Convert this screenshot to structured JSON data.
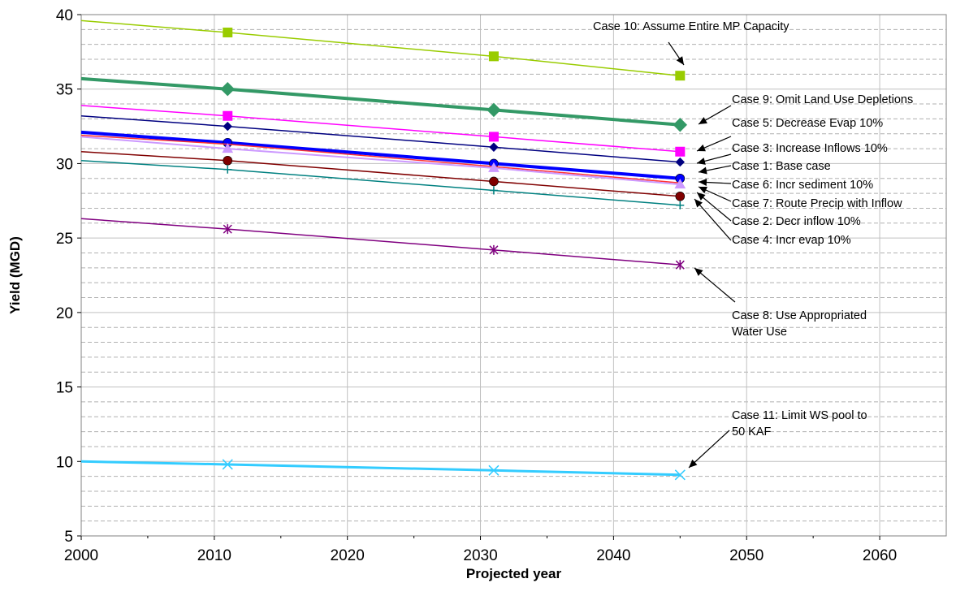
{
  "chart_data": {
    "type": "line",
    "title": "",
    "xlabel": "Projected year",
    "ylabel": "Yield (MGD)",
    "xlim": [
      2000,
      2065
    ],
    "ylim": [
      5,
      40
    ],
    "x_ticks": [
      2000,
      2010,
      2020,
      2030,
      2040,
      2050,
      2060
    ],
    "y_ticks": [
      5,
      10,
      15,
      20,
      25,
      30,
      35,
      40
    ],
    "grid": {
      "major": true,
      "minor_horizontal": true
    },
    "legend": "none",
    "series": [
      {
        "name": "Case 10: Assume Entire MP Capacity",
        "color": "#99cc00",
        "marker": "square",
        "line_width": 1.5,
        "x": [
          2000,
          2011,
          2031,
          2045
        ],
        "values": [
          39.6,
          38.8,
          37.2,
          35.9
        ]
      },
      {
        "name": "Case 9: Omit Land Use Depletions",
        "color": "#339966",
        "marker": "diamond",
        "line_width": 4,
        "x": [
          2000,
          2011,
          2031,
          2045
        ],
        "values": [
          35.7,
          35.0,
          33.6,
          32.6
        ]
      },
      {
        "name": "Case 5: Decrease Evap 10%",
        "color": "#ff00ff",
        "marker": "square",
        "line_width": 1.5,
        "x": [
          2000,
          2011,
          2031,
          2045
        ],
        "values": [
          33.9,
          33.2,
          31.8,
          30.8
        ]
      },
      {
        "name": "Case 3: Increase Inflows 10%",
        "color": "#000080",
        "marker": "diamond",
        "line_width": 1.5,
        "x": [
          2000,
          2011,
          2031,
          2045
        ],
        "values": [
          33.2,
          32.5,
          31.1,
          30.1
        ]
      },
      {
        "name": "Case 1: Base case",
        "color": "#0000ff",
        "marker": "circle",
        "line_width": 4,
        "x": [
          2000,
          2011,
          2031,
          2045
        ],
        "values": [
          32.1,
          31.4,
          30.0,
          29.0
        ]
      },
      {
        "name": "Case 6: Incr sediment 10%",
        "color": "#ff3333",
        "marker": "none",
        "line_width": 1.5,
        "x": [
          2000,
          2011,
          2031,
          2045
        ],
        "values": [
          31.9,
          31.3,
          29.8,
          28.7
        ]
      },
      {
        "name": "Case 7: Route Precip with Inflow",
        "color": "#cc99ff",
        "marker": "triangle",
        "line_width": 2,
        "x": [
          2000,
          2011,
          2031,
          2045
        ],
        "values": [
          31.8,
          31.0,
          29.7,
          28.6
        ]
      },
      {
        "name": "Case 2: Decr inflow 10%",
        "color": "#800000",
        "marker": "circle",
        "line_width": 1.5,
        "x": [
          2000,
          2011,
          2031,
          2045
        ],
        "values": [
          30.8,
          30.2,
          28.8,
          27.8
        ]
      },
      {
        "name": "Case 4: Incr evap 10%",
        "color": "#008080",
        "marker": "plus",
        "line_width": 1.5,
        "x": [
          2000,
          2011,
          2031,
          2045
        ],
        "values": [
          30.2,
          29.6,
          28.2,
          27.2
        ]
      },
      {
        "name": "Case 8: Use Appropriated Water Use",
        "color": "#800080",
        "marker": "asterisk",
        "line_width": 1.5,
        "x": [
          2000,
          2011,
          2031,
          2045
        ],
        "values": [
          26.3,
          25.6,
          24.2,
          23.2
        ]
      },
      {
        "name": "Case 11: Limit WS pool to 50 KAF",
        "color": "#33ccff",
        "marker": "x",
        "line_width": 3,
        "x": [
          2000,
          2011,
          2031,
          2045
        ],
        "values": [
          10.0,
          9.8,
          9.4,
          9.1
        ]
      }
    ],
    "annotations": [
      {
        "lines": [
          "Case 10: Assume Entire MP Capacity"
        ],
        "series": 0
      },
      {
        "lines": [
          "Case 9: Omit Land Use Depletions"
        ],
        "series": 1
      },
      {
        "lines": [
          "Case 5: Decrease Evap 10%"
        ],
        "series": 2
      },
      {
        "lines": [
          "Case 3: Increase Inflows 10%"
        ],
        "series": 3
      },
      {
        "lines": [
          "Case 1: Base case"
        ],
        "series": 4
      },
      {
        "lines": [
          "Case 6: Incr sediment 10%"
        ],
        "series": 5
      },
      {
        "lines": [
          "Case 7: Route Precip with Inflow"
        ],
        "series": 6
      },
      {
        "lines": [
          "Case 2: Decr inflow 10%"
        ],
        "series": 7
      },
      {
        "lines": [
          "Case 4: Incr evap 10%"
        ],
        "series": 8
      },
      {
        "lines": [
          "Case 8: Use Appropriated",
          "Water Use"
        ],
        "series": 9
      },
      {
        "lines": [
          "Case 11: Limit WS pool to",
          "50 KAF"
        ],
        "series": 10
      }
    ]
  }
}
